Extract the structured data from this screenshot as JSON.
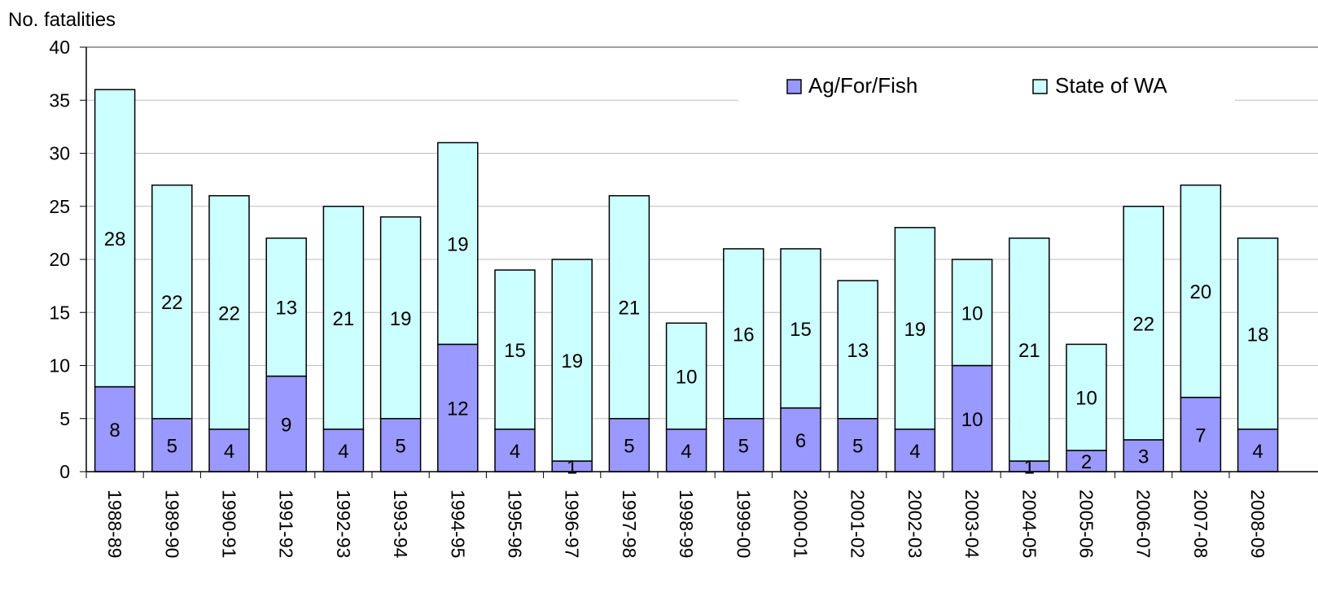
{
  "chart_data": {
    "type": "bar",
    "stacked": true,
    "title": "",
    "ylabel": "No. fatalities",
    "xlabel": "",
    "ylim": [
      0,
      40
    ],
    "yticks": [
      0,
      5,
      10,
      15,
      20,
      25,
      30,
      35,
      40
    ],
    "grid": true,
    "legend_position": "top-right",
    "categories": [
      "1988-89",
      "1989-90",
      "1990-91",
      "1991-92",
      "1992-93",
      "1993-94",
      "1994-95",
      "1995-96",
      "1996-97",
      "1997-98",
      "1998-99",
      "1999-00",
      "2000-01",
      "2001-02",
      "2002-03",
      "2003-04",
      "2004-05",
      "2005-06",
      "2006-07",
      "2007-08",
      "2008-09"
    ],
    "series": [
      {
        "name": "Ag/For/Fish",
        "color": "#9999ff",
        "values": [
          8,
          5,
          4,
          9,
          4,
          5,
          12,
          4,
          1,
          5,
          4,
          5,
          6,
          5,
          4,
          10,
          1,
          2,
          3,
          7,
          4
        ]
      },
      {
        "name": "State of WA",
        "color": "#ccffff",
        "values": [
          28,
          22,
          22,
          13,
          21,
          19,
          19,
          15,
          19,
          21,
          10,
          16,
          15,
          13,
          19,
          10,
          21,
          10,
          22,
          20,
          18
        ]
      }
    ]
  }
}
